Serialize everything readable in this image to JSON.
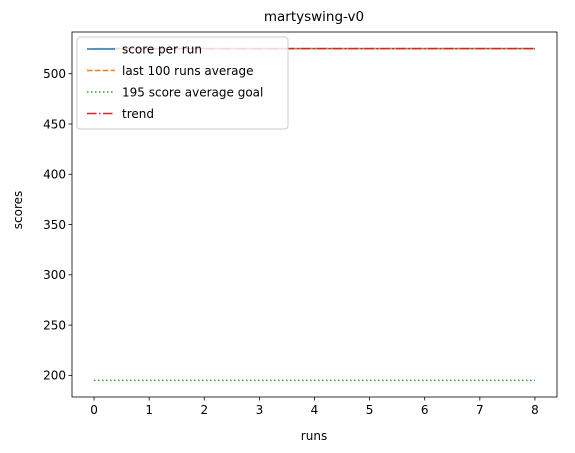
{
  "chart_data": {
    "type": "line",
    "title": "martyswing-v0",
    "xlabel": "runs",
    "ylabel": "scores",
    "xlim": [
      -0.4,
      8.4
    ],
    "ylim": [
      178.5,
      541.5
    ],
    "xticks": [
      0,
      1,
      2,
      3,
      4,
      5,
      6,
      7,
      8
    ],
    "yticks": [
      200,
      250,
      300,
      350,
      400,
      450,
      500
    ],
    "grid": false,
    "legend_position": "top-left",
    "x": [
      0,
      1,
      2,
      3,
      4,
      5,
      6,
      7,
      8
    ],
    "series": [
      {
        "name": "score per run",
        "color": "#1f77b4",
        "style": "solid",
        "values": [
          525,
          525,
          525,
          525,
          525,
          525,
          525,
          525,
          525
        ]
      },
      {
        "name": "last 100 runs average",
        "color": "#ff7f0e",
        "style": "dashed",
        "values": [
          525,
          525,
          525,
          525,
          525,
          525,
          525,
          525,
          525
        ]
      },
      {
        "name": "195 score average goal",
        "color": "#2ca02c",
        "style": "dotted",
        "values": [
          195,
          195,
          195,
          195,
          195,
          195,
          195,
          195,
          195
        ]
      },
      {
        "name": "trend",
        "color": "#d62728",
        "style": "dashdot",
        "values": [
          525,
          525,
          525,
          525,
          525,
          525,
          525,
          525,
          525
        ]
      }
    ]
  }
}
